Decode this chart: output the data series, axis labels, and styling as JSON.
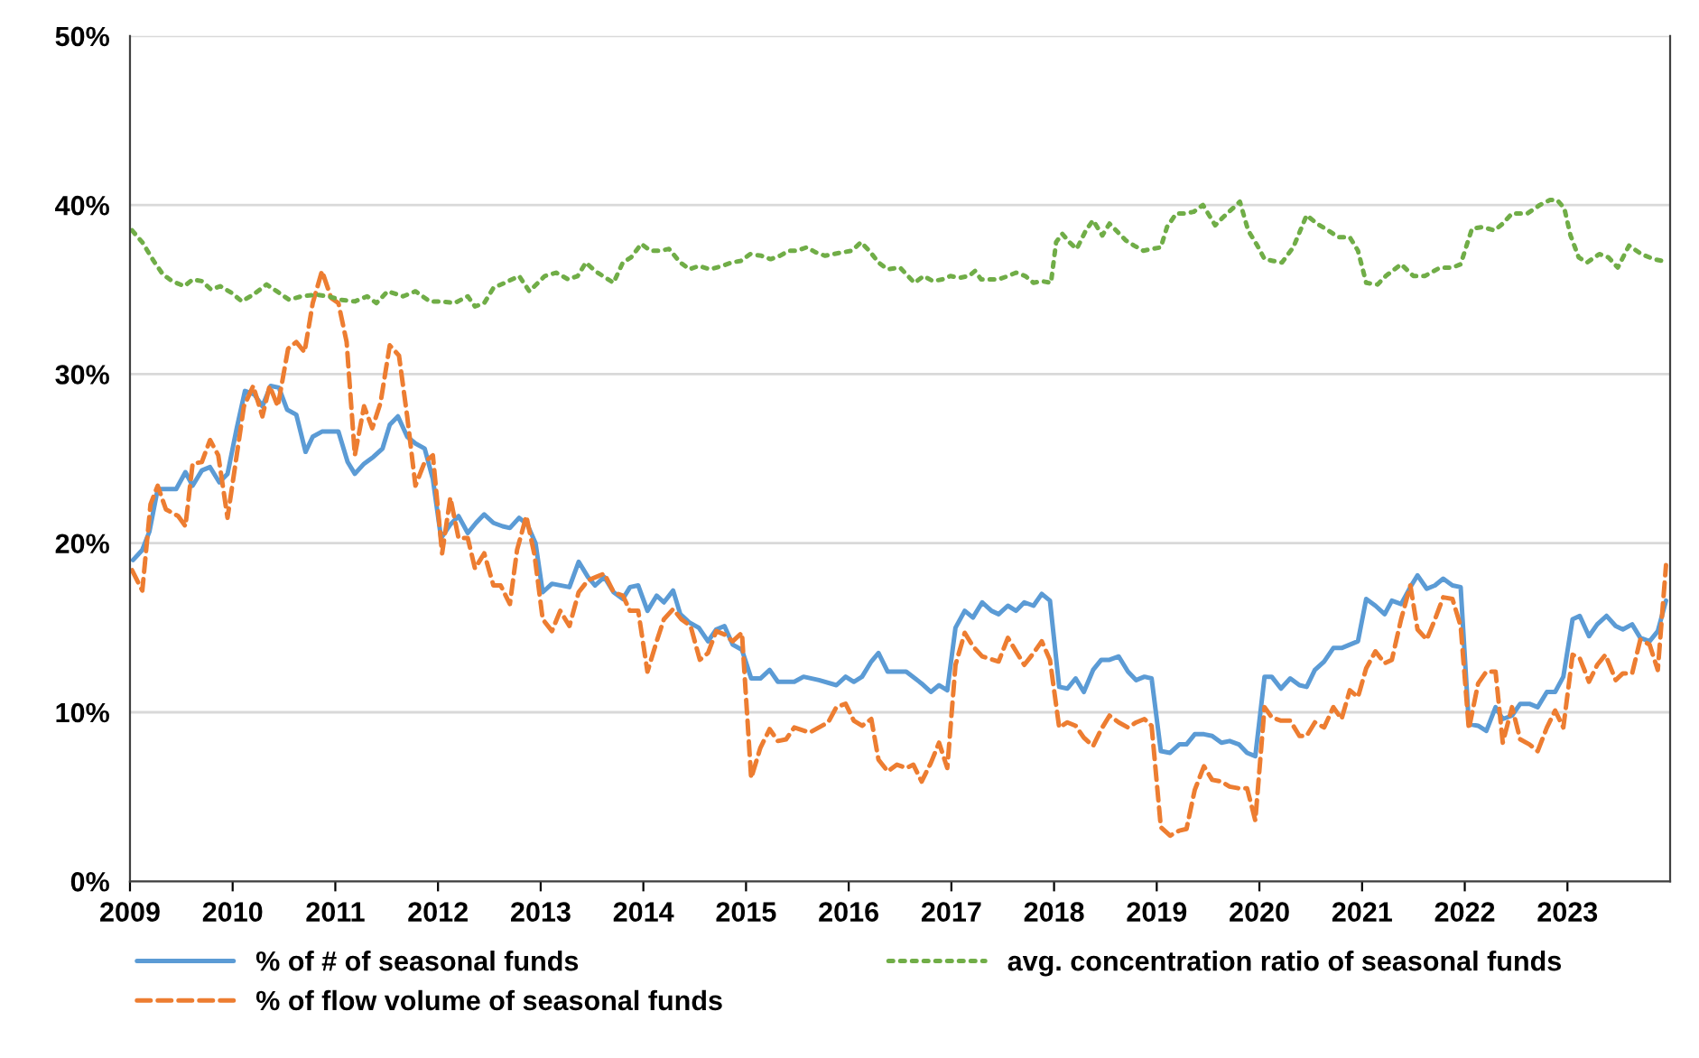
{
  "chart_data": {
    "type": "line",
    "xlim": [
      2009,
      2024
    ],
    "xticks": [
      2009,
      2010,
      2011,
      2012,
      2013,
      2014,
      2015,
      2016,
      2017,
      2018,
      2019,
      2020,
      2021,
      2022,
      2023
    ],
    "ylim": [
      0,
      50
    ],
    "yticks": [
      {
        "value": 0,
        "label": "0%"
      },
      {
        "value": 10,
        "label": "10%"
      },
      {
        "value": 20,
        "label": "20%"
      },
      {
        "value": 30,
        "label": "30%"
      },
      {
        "value": 40,
        "label": "40%"
      },
      {
        "value": 50,
        "label": "50%"
      }
    ],
    "grid": "y",
    "legend": "bottom",
    "marker": "none",
    "series": [
      {
        "name": "% of # of seasonal funds",
        "color": "#5b9bd5",
        "line_style": "solid",
        "x": [
          2009.03,
          2009.12,
          2009.19,
          2009.27,
          2009.36,
          2009.45,
          2009.54,
          2009.61,
          2009.7,
          2009.78,
          2009.87,
          2009.95,
          2010.04,
          2010.12,
          2010.21,
          2010.29,
          2010.37,
          2010.45,
          2010.53,
          2010.62,
          2010.71,
          2010.78,
          2010.87,
          2011.03,
          2011.12,
          2011.19,
          2011.28,
          2011.37,
          2011.46,
          2011.53,
          2011.61,
          2011.7,
          2011.78,
          2011.87,
          2011.95,
          2012.03,
          2012.12,
          2012.2,
          2012.29,
          2012.37,
          2012.45,
          2012.54,
          2012.63,
          2012.7,
          2012.79,
          2012.87,
          2012.95,
          2013.02,
          2013.11,
          2013.28,
          2013.37,
          2013.46,
          2013.53,
          2013.62,
          2013.71,
          2013.8,
          2013.87,
          2013.95,
          2014.04,
          2014.13,
          2014.2,
          2014.29,
          2014.36,
          2014.45,
          2014.54,
          2014.63,
          2014.71,
          2014.79,
          2014.87,
          2014.96,
          2015.05,
          2015.14,
          2015.23,
          2015.31,
          2015.47,
          2015.56,
          2015.71,
          2015.88,
          2015.97,
          2016.05,
          2016.13,
          2016.22,
          2016.29,
          2016.38,
          2016.56,
          2016.71,
          2016.8,
          2016.88,
          2016.96,
          2017.04,
          2017.13,
          2017.21,
          2017.3,
          2017.39,
          2017.46,
          2017.55,
          2017.63,
          2017.71,
          2017.8,
          2017.88,
          2017.96,
          2018.05,
          2018.13,
          2018.21,
          2018.29,
          2018.38,
          2018.46,
          2018.54,
          2018.63,
          2018.72,
          2018.8,
          2018.88,
          2018.95,
          2019.04,
          2019.13,
          2019.22,
          2019.29,
          2019.37,
          2019.46,
          2019.54,
          2019.63,
          2019.71,
          2019.8,
          2019.88,
          2019.96,
          2020.05,
          2020.12,
          2020.21,
          2020.3,
          2020.39,
          2020.46,
          2020.54,
          2020.63,
          2020.72,
          2020.8,
          2020.88,
          2020.96,
          2021.04,
          2021.13,
          2021.22,
          2021.29,
          2021.38,
          2021.47,
          2021.54,
          2021.63,
          2021.71,
          2021.79,
          2021.88,
          2021.96,
          2022.04,
          2022.13,
          2022.21,
          2022.3,
          2022.37,
          2022.46,
          2022.54,
          2022.63,
          2022.71,
          2022.8,
          2022.88,
          2022.96,
          2023.05,
          2023.12,
          2023.21,
          2023.29,
          2023.38,
          2023.47,
          2023.54,
          2023.63,
          2023.71,
          2023.8,
          2023.88,
          2023.96
        ],
        "values": [
          19.0,
          19.6,
          20.7,
          23.2,
          23.2,
          23.2,
          24.2,
          23.4,
          24.3,
          24.5,
          23.6,
          24.1,
          26.8,
          29.0,
          28.8,
          28.1,
          29.3,
          29.2,
          27.9,
          27.6,
          25.4,
          26.3,
          26.6,
          26.6,
          24.8,
          24.1,
          24.7,
          25.1,
          25.6,
          27.0,
          27.5,
          26.3,
          25.9,
          25.6,
          23.8,
          20.3,
          21.1,
          21.6,
          20.6,
          21.2,
          21.7,
          21.2,
          21.0,
          20.9,
          21.5,
          21.1,
          20.0,
          17.1,
          17.6,
          17.4,
          18.9,
          18.0,
          17.5,
          18.0,
          17.1,
          16.7,
          17.4,
          17.5,
          16.0,
          16.9,
          16.5,
          17.2,
          15.8,
          15.3,
          15.0,
          14.2,
          14.9,
          15.1,
          14.0,
          13.7,
          12.0,
          12.0,
          12.5,
          11.8,
          11.8,
          12.1,
          11.9,
          11.6,
          12.1,
          11.8,
          12.1,
          13.0,
          13.5,
          12.4,
          12.4,
          11.7,
          11.2,
          11.6,
          11.3,
          15.0,
          16.0,
          15.6,
          16.5,
          16.0,
          15.8,
          16.3,
          16.0,
          16.5,
          16.3,
          17.0,
          16.6,
          11.5,
          11.4,
          12.0,
          11.2,
          12.5,
          13.1,
          13.1,
          13.3,
          12.4,
          11.9,
          12.1,
          12.0,
          7.7,
          7.6,
          8.1,
          8.1,
          8.7,
          8.7,
          8.6,
          8.2,
          8.3,
          8.1,
          7.6,
          7.4,
          12.1,
          12.1,
          11.4,
          12.0,
          11.6,
          11.5,
          12.5,
          13.0,
          13.8,
          13.8,
          14.0,
          14.2,
          16.7,
          16.3,
          15.8,
          16.6,
          16.4,
          17.4,
          18.1,
          17.3,
          17.5,
          17.9,
          17.5,
          17.4,
          9.3,
          9.2,
          8.9,
          10.3,
          9.6,
          9.8,
          10.5,
          10.5,
          10.3,
          11.2,
          11.2,
          12.1,
          15.5,
          15.7,
          14.5,
          15.2,
          15.7,
          15.1,
          14.9,
          15.2,
          14.4,
          14.2,
          14.8,
          16.6
        ]
      },
      {
        "name": "% of flow volume of seasonal funds",
        "color": "#ed7d31",
        "line_style": "dashed",
        "x": [
          2009.02,
          2009.12,
          2009.2,
          2009.27,
          2009.35,
          2009.47,
          2009.54,
          2009.61,
          2009.7,
          2009.78,
          2009.86,
          2009.95,
          2010.11,
          2010.2,
          2010.29,
          2010.36,
          2010.44,
          2010.54,
          2010.62,
          2010.7,
          2010.78,
          2010.87,
          2010.96,
          2011.03,
          2011.11,
          2011.19,
          2011.28,
          2011.36,
          2011.44,
          2011.53,
          2011.62,
          2011.7,
          2011.78,
          2011.87,
          2011.95,
          2012.04,
          2012.12,
          2012.2,
          2012.29,
          2012.36,
          2012.45,
          2012.54,
          2012.61,
          2012.7,
          2012.77,
          2012.86,
          2012.94,
          2013.02,
          2013.11,
          2013.19,
          2013.28,
          2013.37,
          2013.46,
          2013.54,
          2013.62,
          2013.71,
          2013.8,
          2013.87,
          2013.95,
          2014.04,
          2014.13,
          2014.2,
          2014.29,
          2014.37,
          2014.46,
          2014.55,
          2014.63,
          2014.71,
          2014.79,
          2014.87,
          2014.96,
          2015.05,
          2015.14,
          2015.23,
          2015.31,
          2015.39,
          2015.47,
          2015.62,
          2015.8,
          2015.88,
          2015.97,
          2016.05,
          2016.13,
          2016.22,
          2016.29,
          2016.38,
          2016.47,
          2016.56,
          2016.63,
          2016.71,
          2016.8,
          2016.88,
          2016.96,
          2017.04,
          2017.13,
          2017.21,
          2017.3,
          2017.46,
          2017.55,
          2017.71,
          2017.8,
          2017.88,
          2017.96,
          2018.05,
          2018.13,
          2018.21,
          2018.29,
          2018.38,
          2018.46,
          2018.54,
          2018.63,
          2018.72,
          2018.8,
          2018.88,
          2018.95,
          2019.04,
          2019.13,
          2019.22,
          2019.29,
          2019.37,
          2019.46,
          2019.54,
          2019.63,
          2019.71,
          2019.8,
          2019.88,
          2019.96,
          2020.05,
          2020.12,
          2020.21,
          2020.3,
          2020.39,
          2020.46,
          2020.54,
          2020.63,
          2020.72,
          2020.8,
          2020.88,
          2020.96,
          2021.04,
          2021.13,
          2021.22,
          2021.29,
          2021.38,
          2021.47,
          2021.54,
          2021.63,
          2021.71,
          2021.79,
          2021.88,
          2021.96,
          2022.04,
          2022.13,
          2022.21,
          2022.3,
          2022.37,
          2022.46,
          2022.54,
          2022.63,
          2022.71,
          2022.8,
          2022.88,
          2022.96,
          2023.05,
          2023.12,
          2023.21,
          2023.29,
          2023.37,
          2023.47,
          2023.54,
          2023.63,
          2023.71,
          2023.8,
          2023.88,
          2023.96
        ],
        "values": [
          18.4,
          17.2,
          22.3,
          23.4,
          22.0,
          21.6,
          21.0,
          24.7,
          24.8,
          26.1,
          25.2,
          21.5,
          28.1,
          29.3,
          27.5,
          29.3,
          28.1,
          31.5,
          31.9,
          31.3,
          34.2,
          36.1,
          34.5,
          34.2,
          31.9,
          25.2,
          28.1,
          26.8,
          28.3,
          31.7,
          31.1,
          27.5,
          23.4,
          24.8,
          25.2,
          19.4,
          22.7,
          20.3,
          20.3,
          18.5,
          19.4,
          17.5,
          17.5,
          16.4,
          19.6,
          21.6,
          19.3,
          15.5,
          14.8,
          16.0,
          15.1,
          17.1,
          17.8,
          18.0,
          18.2,
          17.1,
          16.9,
          16.0,
          16.0,
          12.4,
          14.2,
          15.5,
          16.1,
          15.5,
          15.1,
          13.1,
          13.5,
          14.8,
          14.6,
          14.2,
          14.7,
          6.1,
          7.9,
          9.0,
          8.3,
          8.4,
          9.1,
          8.8,
          9.4,
          10.3,
          10.5,
          9.5,
          9.2,
          9.6,
          7.2,
          6.5,
          6.9,
          6.7,
          6.9,
          5.9,
          7.0,
          8.2,
          6.7,
          12.8,
          14.7,
          13.9,
          13.3,
          13.0,
          14.4,
          12.8,
          13.5,
          14.2,
          13.1,
          9.1,
          9.4,
          9.2,
          8.5,
          8.0,
          9.0,
          9.8,
          9.4,
          9.1,
          9.4,
          9.6,
          9.2,
          3.2,
          2.7,
          3.0,
          3.1,
          5.4,
          6.8,
          6.0,
          5.9,
          5.6,
          5.5,
          5.5,
          3.6,
          10.3,
          9.7,
          9.5,
          9.5,
          8.6,
          8.6,
          9.4,
          9.1,
          10.3,
          9.6,
          11.3,
          10.9,
          12.6,
          13.6,
          12.9,
          13.1,
          15.5,
          17.5,
          14.9,
          14.3,
          15.5,
          16.8,
          16.7,
          15.1,
          9.0,
          11.7,
          12.4,
          12.4,
          8.2,
          10.3,
          8.4,
          8.1,
          7.7,
          9.1,
          10.1,
          9.1,
          13.4,
          13.2,
          11.8,
          12.8,
          13.4,
          11.9,
          12.3,
          12.3,
          14.3,
          14.0,
          12.5,
          18.7
        ]
      },
      {
        "name": "avg. concentration ratio of seasonal funds",
        "color": "#70ad47",
        "line_style": "dotted",
        "x": [
          2009.02,
          2009.12,
          2009.23,
          2009.32,
          2009.41,
          2009.53,
          2009.61,
          2009.7,
          2009.79,
          2009.88,
          2009.99,
          2010.09,
          2010.2,
          2010.33,
          2010.43,
          2010.55,
          2010.67,
          2010.81,
          2010.93,
          2011.05,
          2011.19,
          2011.31,
          2011.4,
          2011.51,
          2011.66,
          2011.78,
          2011.92,
          2012.04,
          2012.16,
          2012.29,
          2012.36,
          2012.45,
          2012.54,
          2012.65,
          2012.79,
          2012.89,
          2013.04,
          2013.15,
          2013.27,
          2013.36,
          2013.44,
          2013.53,
          2013.71,
          2013.8,
          2013.88,
          2013.98,
          2014.07,
          2014.16,
          2014.25,
          2014.36,
          2014.45,
          2014.54,
          2014.65,
          2014.77,
          2014.86,
          2014.95,
          2015.04,
          2015.15,
          2015.24,
          2015.33,
          2015.42,
          2015.5,
          2015.59,
          2015.68,
          2015.77,
          2015.85,
          2015.94,
          2016.03,
          2016.12,
          2016.2,
          2016.29,
          2016.38,
          2016.5,
          2016.64,
          2016.73,
          2016.82,
          2016.91,
          2016.99,
          2017.08,
          2017.17,
          2017.23,
          2017.29,
          2017.37,
          2017.46,
          2017.55,
          2017.63,
          2017.72,
          2017.8,
          2017.88,
          2017.97,
          2018.02,
          2018.08,
          2018.15,
          2018.22,
          2018.31,
          2018.38,
          2018.47,
          2018.54,
          2018.62,
          2018.7,
          2018.78,
          2018.87,
          2018.95,
          2019.04,
          2019.1,
          2019.19,
          2019.27,
          2019.36,
          2019.45,
          2019.57,
          2019.65,
          2019.74,
          2019.81,
          2019.89,
          2019.98,
          2020.05,
          2020.13,
          2020.22,
          2020.33,
          2020.46,
          2020.56,
          2020.67,
          2020.77,
          2020.88,
          2020.96,
          2021.04,
          2021.15,
          2021.23,
          2021.38,
          2021.5,
          2021.61,
          2021.76,
          2021.88,
          2021.96,
          2022.07,
          2022.17,
          2022.29,
          2022.37,
          2022.46,
          2022.61,
          2022.73,
          2022.83,
          2022.9,
          2022.97,
          2023.03,
          2023.11,
          2023.19,
          2023.31,
          2023.4,
          2023.49,
          2023.6,
          2023.72,
          2023.84,
          2023.92
        ],
        "values": [
          38.5,
          37.8,
          36.7,
          35.9,
          35.5,
          35.2,
          35.6,
          35.5,
          35.0,
          35.2,
          34.8,
          34.3,
          34.7,
          35.3,
          34.9,
          34.4,
          34.6,
          34.7,
          34.6,
          34.4,
          34.3,
          34.6,
          34.2,
          34.9,
          34.6,
          34.9,
          34.3,
          34.3,
          34.2,
          34.6,
          34.0,
          34.2,
          35.1,
          35.4,
          35.8,
          34.9,
          35.8,
          36.0,
          35.6,
          35.8,
          36.6,
          36.1,
          35.4,
          36.6,
          36.9,
          37.7,
          37.3,
          37.3,
          37.4,
          36.6,
          36.2,
          36.4,
          36.2,
          36.4,
          36.6,
          36.7,
          37.1,
          37.0,
          36.8,
          37.0,
          37.3,
          37.3,
          37.5,
          37.2,
          37.0,
          37.1,
          37.2,
          37.3,
          37.8,
          37.3,
          36.6,
          36.2,
          36.3,
          35.4,
          35.8,
          35.5,
          35.6,
          35.8,
          35.7,
          35.8,
          36.1,
          35.6,
          35.6,
          35.6,
          35.8,
          36.0,
          35.8,
          35.4,
          35.5,
          35.4,
          37.8,
          38.3,
          37.8,
          37.4,
          38.5,
          39.1,
          38.2,
          38.9,
          38.4,
          37.9,
          37.6,
          37.3,
          37.4,
          37.5,
          38.7,
          39.5,
          39.5,
          39.6,
          40.0,
          38.8,
          39.3,
          39.8,
          40.2,
          38.5,
          37.6,
          36.8,
          36.7,
          36.6,
          37.5,
          39.4,
          38.9,
          38.5,
          38.1,
          38.1,
          37.3,
          35.4,
          35.3,
          35.8,
          36.5,
          35.8,
          35.8,
          36.3,
          36.3,
          36.5,
          38.6,
          38.7,
          38.5,
          38.9,
          39.5,
          39.5,
          40.0,
          40.3,
          40.3,
          39.8,
          38.2,
          36.9,
          36.6,
          37.1,
          36.9,
          36.3,
          37.6,
          37.1,
          36.8,
          36.7
        ]
      }
    ]
  }
}
